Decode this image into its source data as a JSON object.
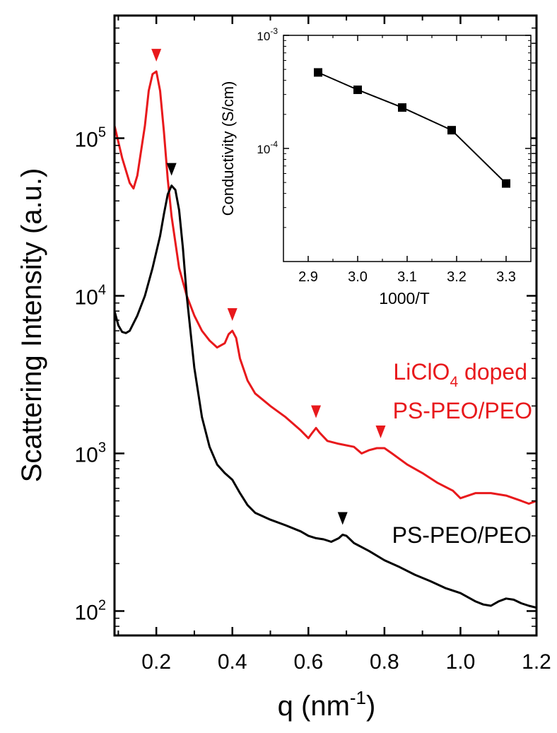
{
  "chart_data": [
    {
      "type": "line",
      "ylabel": "Scattering Intensity (a.u.)",
      "xlabel_base": "q (nm",
      "xlabel_sup": "-1",
      "xlabel_close": ")",
      "xlim": [
        0.09,
        1.2
      ],
      "ylim": [
        70,
        600000
      ],
      "yscale": "log",
      "x_ticks": [
        0.2,
        0.4,
        0.6,
        0.8,
        1.0,
        1.2
      ],
      "x_tick_labels": [
        "0.2",
        "0.4",
        "0.6",
        "0.8",
        "1.0",
        "1.2"
      ],
      "y_ticks": [
        100,
        1000,
        10000,
        100000
      ],
      "y_tick_labels": [
        {
          "base": "10",
          "exp": "2"
        },
        {
          "base": "10",
          "exp": "3"
        },
        {
          "base": "10",
          "exp": "4"
        },
        {
          "base": "10",
          "exp": "5"
        }
      ],
      "series": [
        {
          "name": "LiClO4 doped PS-PEO/PEO",
          "color": "#e8191c",
          "x": [
            0.09,
            0.11,
            0.13,
            0.14,
            0.15,
            0.17,
            0.18,
            0.19,
            0.2,
            0.21,
            0.22,
            0.23,
            0.24,
            0.26,
            0.28,
            0.3,
            0.32,
            0.34,
            0.36,
            0.38,
            0.39,
            0.4,
            0.41,
            0.42,
            0.44,
            0.46,
            0.5,
            0.54,
            0.58,
            0.6,
            0.61,
            0.62,
            0.63,
            0.65,
            0.68,
            0.72,
            0.74,
            0.76,
            0.78,
            0.8,
            0.82,
            0.86,
            0.9,
            0.94,
            0.98,
            1.0,
            1.04,
            1.08,
            1.12,
            1.16,
            1.18,
            1.2
          ],
          "y": [
            120000,
            75000,
            52000,
            48000,
            58000,
            120000,
            200000,
            255000,
            265000,
            200000,
            110000,
            55000,
            32000,
            15000,
            10000,
            7500,
            6000,
            5200,
            4700,
            5000,
            5700,
            6000,
            5400,
            4000,
            2900,
            2400,
            2000,
            1700,
            1400,
            1250,
            1350,
            1450,
            1350,
            1200,
            1150,
            1100,
            1000,
            1050,
            1080,
            1080,
            1000,
            850,
            750,
            650,
            580,
            520,
            560,
            560,
            540,
            500,
            480,
            500
          ]
        },
        {
          "name": "PS-PEO/PEO",
          "color": "#000000",
          "x": [
            0.09,
            0.1,
            0.11,
            0.12,
            0.13,
            0.15,
            0.17,
            0.19,
            0.21,
            0.22,
            0.23,
            0.24,
            0.25,
            0.26,
            0.27,
            0.28,
            0.3,
            0.32,
            0.34,
            0.36,
            0.38,
            0.4,
            0.42,
            0.44,
            0.46,
            0.5,
            0.54,
            0.58,
            0.6,
            0.62,
            0.64,
            0.66,
            0.68,
            0.69,
            0.7,
            0.72,
            0.76,
            0.8,
            0.84,
            0.88,
            0.92,
            0.96,
            1.0,
            1.04,
            1.06,
            1.08,
            1.1,
            1.12,
            1.14,
            1.16,
            1.18,
            1.2
          ],
          "y": [
            8000,
            6500,
            5900,
            5800,
            6000,
            7500,
            10000,
            15000,
            24000,
            33000,
            44000,
            50000,
            47000,
            35000,
            20000,
            10000,
            3500,
            1700,
            1100,
            850,
            750,
            680,
            560,
            470,
            420,
            380,
            350,
            320,
            300,
            290,
            285,
            275,
            290,
            305,
            300,
            270,
            240,
            210,
            190,
            170,
            155,
            140,
            130,
            115,
            110,
            108,
            115,
            120,
            118,
            112,
            108,
            105
          ]
        }
      ],
      "markers": [
        {
          "color": "#e8191c",
          "x": 0.2,
          "y": 265000
        },
        {
          "color": "#e8191c",
          "x": 0.4,
          "y": 6000
        },
        {
          "color": "#e8191c",
          "x": 0.62,
          "y": 1450
        },
        {
          "color": "#e8191c",
          "x": 0.79,
          "y": 1080
        },
        {
          "color": "#000000",
          "x": 0.24,
          "y": 50000
        },
        {
          "color": "#000000",
          "x": 0.69,
          "y": 305
        }
      ],
      "annotations": {
        "doped_line1_base": "LiClO",
        "doped_line1_sub": "4",
        "doped_line1_rest": " doped",
        "doped_line2": "PS-PEO/PEO",
        "undoped": "PS-PEO/PEO"
      }
    },
    {
      "type": "line",
      "xlabel": "1000/T",
      "ylabel": "Conductivity (S/cm)",
      "xlim": [
        2.85,
        3.35
      ],
      "ylim": [
        1e-05,
        0.001
      ],
      "yscale": "log",
      "x_ticks": [
        2.9,
        3.0,
        3.1,
        3.2,
        3.3
      ],
      "x_tick_labels": [
        "2.9",
        "3.0",
        "3.1",
        "3.2",
        "3.3"
      ],
      "y_ticks": [
        0.0001,
        0.001
      ],
      "y_tick_labels": [
        {
          "base": "10",
          "exp": "-4"
        },
        {
          "base": "10",
          "exp": "-3"
        }
      ],
      "series": [
        {
          "color": "#000000",
          "marker": "square",
          "x": [
            2.92,
            3.0,
            3.09,
            3.19,
            3.3
          ],
          "y": [
            0.00047,
            0.00033,
            0.00023,
            0.000145,
            4.9e-05
          ]
        }
      ]
    }
  ]
}
